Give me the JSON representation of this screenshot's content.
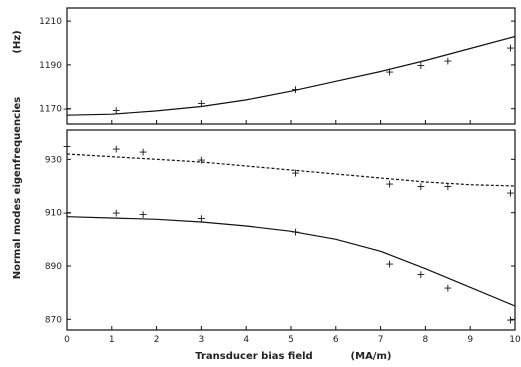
{
  "chart_data": {
    "type": "scatter",
    "xlabel": "Transducer bias field",
    "xunit": "(MA/m)",
    "ylabel": "Normal modes eigenfrequencies",
    "yunit": "(Hz)",
    "xlim": [
      0,
      10
    ],
    "x_ticks": [
      "0",
      "1",
      "2",
      "3",
      "4",
      "5",
      "6",
      "7",
      "8",
      "9",
      "10"
    ],
    "panels": [
      {
        "name": "top",
        "ylim": [
          1163,
          1216
        ],
        "y_ticks": [
          "1170",
          "1190",
          "1210"
        ],
        "series": [
          {
            "kind": "measured",
            "marker": "+",
            "points": [
              [
                0,
                1170
              ],
              [
                1.1,
                1169.5
              ],
              [
                3,
                1172.5
              ],
              [
                5.1,
                1179
              ],
              [
                7.2,
                1187
              ],
              [
                7.9,
                1190
              ],
              [
                8.5,
                1192
              ],
              [
                9.9,
                1198
              ]
            ]
          },
          {
            "kind": "fit",
            "line": "solid",
            "points": [
              [
                0,
                1167
              ],
              [
                1,
                1167.5
              ],
              [
                2,
                1169
              ],
              [
                3,
                1171
              ],
              [
                4,
                1174
              ],
              [
                5,
                1178
              ],
              [
                6,
                1182.5
              ],
              [
                7,
                1187
              ],
              [
                8,
                1192
              ],
              [
                9,
                1197.5
              ],
              [
                10,
                1203
              ]
            ]
          }
        ]
      },
      {
        "name": "bottom",
        "ylim": [
          866,
          941
        ],
        "y_ticks": [
          "870",
          "890",
          "910",
          "930"
        ],
        "series": [
          {
            "kind": "measured",
            "marker": "+",
            "points": [
              [
                0,
                935
              ],
              [
                1.1,
                934
              ],
              [
                1.7,
                933
              ],
              [
                3,
                930
              ],
              [
                5.1,
                925
              ],
              [
                7.2,
                921
              ],
              [
                7.9,
                920
              ],
              [
                8.5,
                920
              ],
              [
                9.9,
                917.5
              ]
            ]
          },
          {
            "kind": "fit",
            "line": "dashed",
            "points": [
              [
                0,
                932
              ],
              [
                1,
                931
              ],
              [
                2,
                930
              ],
              [
                3,
                929
              ],
              [
                4,
                927.5
              ],
              [
                5,
                926
              ],
              [
                6,
                924.5
              ],
              [
                7,
                923
              ],
              [
                8,
                921.5
              ],
              [
                9,
                920.5
              ],
              [
                10,
                920
              ]
            ]
          },
          {
            "kind": "measured",
            "marker": "+",
            "points": [
              [
                0,
                910
              ],
              [
                1.1,
                910
              ],
              [
                1.7,
                909.5
              ],
              [
                3,
                908
              ],
              [
                5.1,
                903
              ],
              [
                7.2,
                891
              ],
              [
                7.9,
                887
              ],
              [
                8.5,
                882
              ],
              [
                9.9,
                870
              ]
            ]
          },
          {
            "kind": "fit",
            "line": "solid",
            "points": [
              [
                0,
                908.5
              ],
              [
                1,
                908
              ],
              [
                2,
                907.5
              ],
              [
                3,
                906.5
              ],
              [
                4,
                905
              ],
              [
                5,
                903
              ],
              [
                6,
                900
              ],
              [
                7,
                895.5
              ],
              [
                8,
                889
              ],
              [
                9,
                882
              ],
              [
                10,
                875
              ]
            ]
          }
        ]
      }
    ]
  }
}
